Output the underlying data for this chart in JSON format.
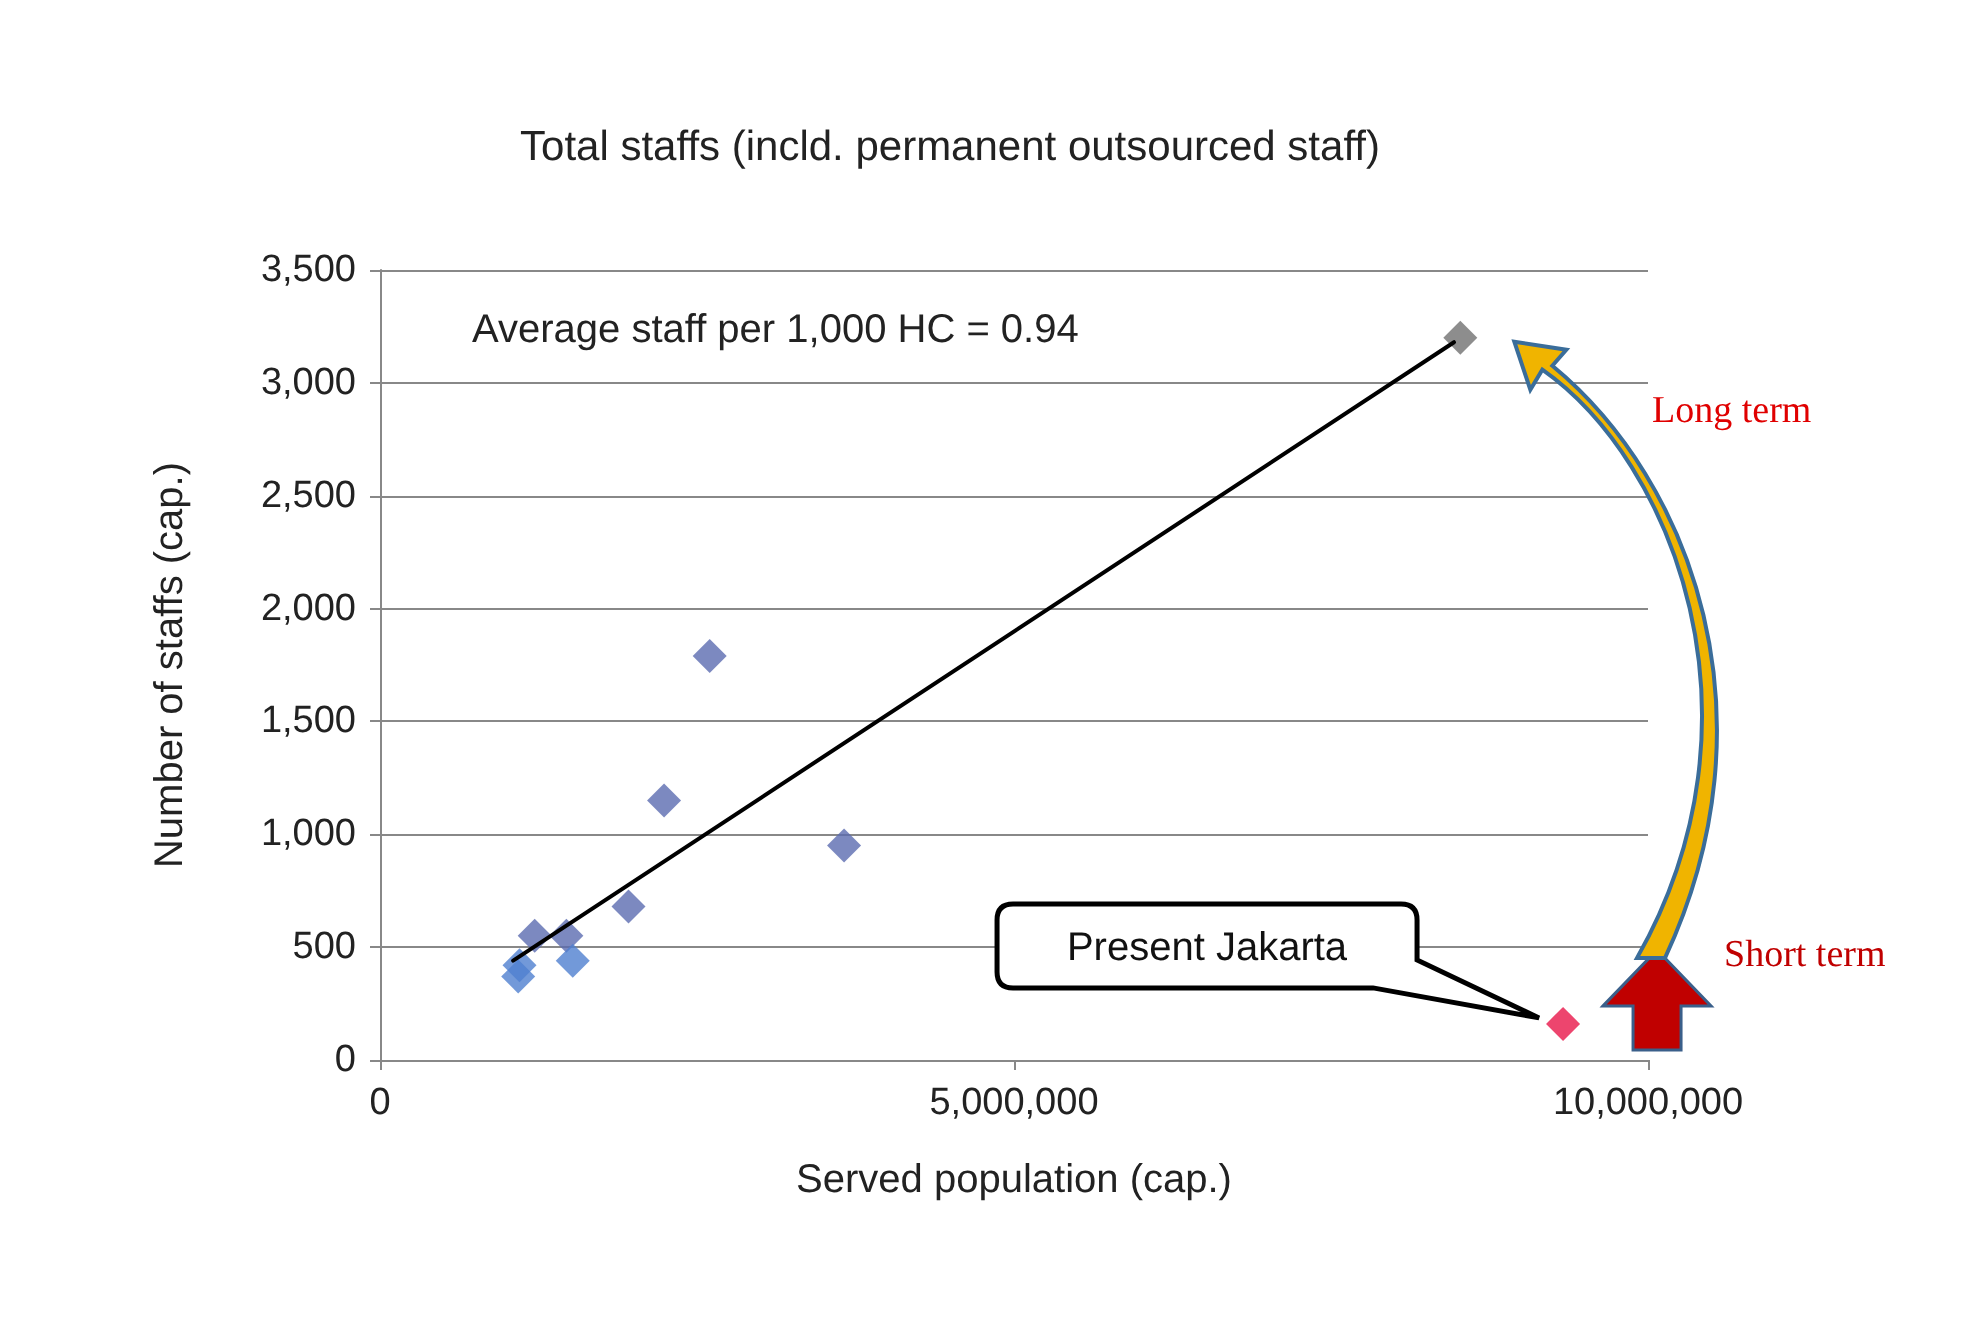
{
  "chart_data": {
    "type": "scatter",
    "title": "Total staffs (incld. permanent outsourced staff)",
    "xlabel": "Served population (cap.)",
    "ylabel": "Number of staffs (cap.)",
    "xlim": [
      0,
      10000000
    ],
    "xticks": [
      0,
      {
        "value": 5000000,
        "label": "5,000,000"
      },
      {
        "value": 10000000,
        "label": "10,000,000"
      }
    ],
    "ylim": [
      0,
      3500
    ],
    "yticks": [
      0,
      500,
      {
        "value": 1000,
        "label": "1,000"
      },
      {
        "value": 1500,
        "label": "1,500"
      },
      {
        "value": 2000,
        "label": "2,000"
      },
      {
        "value": 2500,
        "label": "2,500"
      },
      {
        "value": 3000,
        "label": "3,000"
      },
      {
        "value": 3500,
        "label": "3,500"
      }
    ],
    "grid": "y",
    "marker": "diamond",
    "series": [
      {
        "x": [
          2600000,
          2240000,
          3660000,
          1960000,
          1220000,
          1470000,
          1090000,
          1100000,
          1520000,
          8520000,
          9330000
        ],
        "values": [
          1790,
          1150,
          950,
          680,
          550,
          550,
          370,
          420,
          440,
          3200,
          160
        ],
        "colors": [
          "#5b6bb0",
          "#5b6bb0",
          "#5b6bb0",
          "#5b6bb0",
          "#5b6bb0",
          "#5b6bb0",
          "#4f7fd0",
          "#4f7fd0",
          "#4f7fd0",
          "#707070",
          "#e8174a"
        ]
      },
      {
        "type": "line",
        "x": [
          1050000,
          8470000
        ],
        "values": [
          440,
          3180
        ],
        "color": "#000000",
        "marker": "none"
      }
    ],
    "annotations": [
      "Average staff per 1,000 HC = 0.94",
      "Present Jakarta",
      "Long term",
      "Short term"
    ]
  }
}
